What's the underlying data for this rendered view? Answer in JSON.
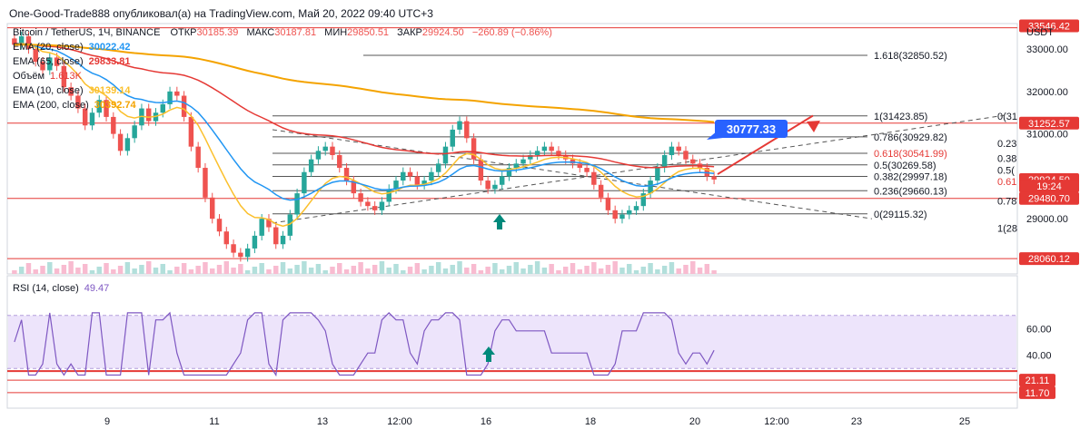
{
  "header": {
    "text": "One-Good-Trade888 опубликовал(а) на TradingView.com, Май 20, 2022 09:40 UTC+3"
  },
  "symbol_line": {
    "name": "Bitcoin / TetherUS, 1Ч, BINANCE",
    "open_label": "ОТКР",
    "open": "30185.39",
    "high_label": "МАКС",
    "high": "30187.81",
    "low_label": "МИН",
    "low": "29850.51",
    "close_label": "ЗАКР",
    "close": "29924.50",
    "change": "−260.89 (−0.86%)"
  },
  "indicators": [
    {
      "label": "EMA (20, close)",
      "value": "30022.42",
      "color": "#2196f3"
    },
    {
      "label": "EMA (65, close)",
      "value": "29833.81",
      "color": "#e53935"
    },
    {
      "label": "Объём",
      "value": "1.613K",
      "color": "#26a69a"
    },
    {
      "label": "EMA (10, close)",
      "value": "30139.14",
      "color": "#fbc02d"
    },
    {
      "label": "EMA (200, close)",
      "value": "30392.74",
      "color": "#f4a300"
    }
  ],
  "rsi_label": "RSI (14, close)",
  "rsi_value": "49.47",
  "currency": "USDT",
  "colors": {
    "up": "#26a69a",
    "down": "#ef5350",
    "rsi": "#7e57c2",
    "callout": "#2962ff",
    "level": "#e53935"
  },
  "chart_data": {
    "type": "candlestick",
    "price_axis": {
      "min": 27700,
      "max": 33600,
      "ticks": [
        33000,
        32000,
        31000,
        30000,
        29000
      ]
    },
    "rsi_axis": {
      "min": 0,
      "max": 100,
      "ticks": [
        60,
        40
      ],
      "band": [
        30,
        70
      ]
    },
    "time_axis": [
      "9",
      "11",
      "13",
      "12:00",
      "16",
      "18",
      "20",
      "12:00",
      "23",
      "25"
    ],
    "fib_levels": [
      {
        "label": "1.618(32850.52)",
        "price": 32850.52
      },
      {
        "label": "1(31423.85)",
        "price": 31423.85
      },
      {
        "label": "0.786(30929.82)",
        "price": 30929.82
      },
      {
        "label": "0.618(30541.99)",
        "price": 30541.99
      },
      {
        "label": "0.5(30269.58)",
        "price": 30269.58
      },
      {
        "label": "0.382(29997.18)",
        "price": 29997.18
      },
      {
        "label": "0.236(29660.13)",
        "price": 29660.13
      },
      {
        "label": "0(29115.32)",
        "price": 29115.32
      }
    ],
    "fib_partial": [
      {
        "label": "0(31",
        "price": 31423.85
      },
      {
        "label": "0.23",
        "price": 30780
      },
      {
        "label": "0.38",
        "price": 30430
      },
      {
        "label": "0.5(",
        "price": 30150
      },
      {
        "label": "0.61",
        "price": 29880
      },
      {
        "label": "0.78",
        "price": 29420
      },
      {
        "label": "1(28",
        "price": 28780
      }
    ],
    "horizontal_levels": [
      33500,
      31252.57,
      29480.7,
      28060.12
    ],
    "price_tags": [
      {
        "label": "33546.42",
        "price": 33546.42,
        "color": "#e53935"
      },
      {
        "label": "31252.57",
        "price": 31252.57,
        "color": "#e53935"
      },
      {
        "label": "29924.50",
        "price": 29924.5,
        "color": "#e53935"
      },
      {
        "label": "19:24",
        "price": 29770,
        "color": "#e53935"
      },
      {
        "label": "29480.70",
        "price": 29480.7,
        "color": "#e53935"
      },
      {
        "label": "28060.12",
        "price": 28060.12,
        "color": "#e53935"
      }
    ],
    "rsi_tags": [
      {
        "label": "21.11",
        "value": 21.11
      },
      {
        "label": "11.70",
        "value": 11.7
      }
    ],
    "callout": {
      "label": "30777.33",
      "price": 30777.33
    },
    "candles_close": [
      33100,
      33300,
      33000,
      32700,
      32500,
      32800,
      32600,
      32100,
      31900,
      31600,
      31200,
      31500,
      31800,
      31400,
      31000,
      30600,
      30900,
      31200,
      31600,
      31300,
      31500,
      31700,
      32000,
      31900,
      31400,
      30700,
      30200,
      29500,
      29000,
      28700,
      28400,
      28200,
      28100,
      28300,
      28600,
      29000,
      28800,
      28400,
      28600,
      29100,
      29600,
      30100,
      30400,
      30600,
      30700,
      30500,
      30200,
      29900,
      29600,
      29400,
      29300,
      29200,
      29400,
      29700,
      29900,
      30100,
      30000,
      29800,
      29900,
      30100,
      30300,
      30700,
      31100,
      31300,
      30900,
      30400,
      29900,
      29700,
      29800,
      30000,
      30200,
      30300,
      30400,
      30500,
      30600,
      30700,
      30600,
      30500,
      30400,
      30300,
      30200,
      30100,
      29800,
      29500,
      29200,
      29000,
      29100,
      29200,
      29300,
      29600,
      29900,
      30200,
      30500,
      30700,
      30600,
      30400,
      30300,
      30200,
      30000,
      29924.5
    ]
  }
}
